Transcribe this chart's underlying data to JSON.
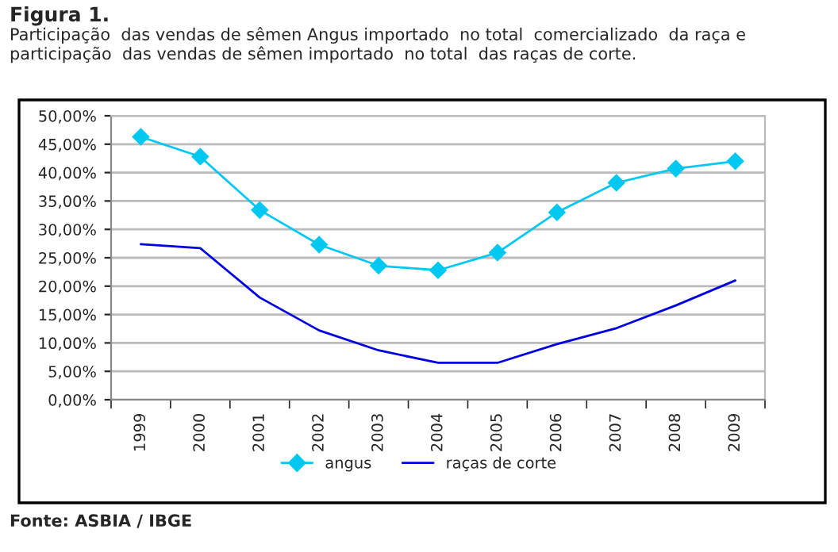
{
  "chart_data": {
    "type": "line",
    "title": "Figura 1.",
    "subtitle": "Participação  das vendas de sêmen Angus importado  no total  comercializado  da raça e participação  das vendas de sêmen importado  no total  das raças de corte.",
    "categories": [
      "1999",
      "2000",
      "2001",
      "2002",
      "2003",
      "2004",
      "2005",
      "2006",
      "2007",
      "2008",
      "2009"
    ],
    "series": [
      {
        "name": "angus",
        "color": "#00c8f0",
        "marker": "diamond",
        "values": [
          46.3,
          42.8,
          33.4,
          27.3,
          23.6,
          22.8,
          25.9,
          33.0,
          38.2,
          40.7,
          42.0
        ]
      },
      {
        "name": "raças de corte",
        "color": "#0000e0",
        "marker": "none",
        "values": [
          27.4,
          26.7,
          18.0,
          12.2,
          8.7,
          6.5,
          6.5,
          9.8,
          12.6,
          16.6,
          21.0
        ]
      }
    ],
    "ylim": [
      0,
      50
    ],
    "yticks": [
      {
        "value": 0,
        "label": "0,00%"
      },
      {
        "value": 5,
        "label": "5,00%"
      },
      {
        "value": 10,
        "label": "10,00%"
      },
      {
        "value": 15,
        "label": "15,00%"
      },
      {
        "value": 20,
        "label": "20,00%"
      },
      {
        "value": 25,
        "label": "25,00%"
      },
      {
        "value": 30,
        "label": "30,00%"
      },
      {
        "value": 35,
        "label": "35,00%"
      },
      {
        "value": 40,
        "label": "40,00%"
      },
      {
        "value": 45,
        "label": "45,00%"
      },
      {
        "value": 50,
        "label": "50,00%"
      }
    ],
    "grid": "y",
    "legend": "bottom",
    "annotations": [
      "Fonte: ASBIA / IBGE"
    ]
  }
}
